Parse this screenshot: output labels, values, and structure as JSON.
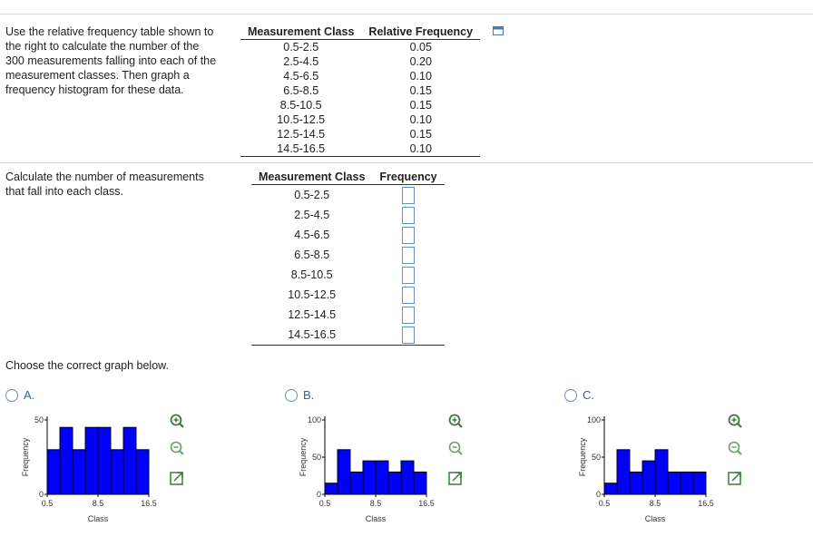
{
  "prompt_text": "Use the relative frequency table shown to the right to calculate the number of the 300 measurements falling into each of the measurement classes. Then graph a frequency histogram for these data.",
  "prompt_lines": [
    "Use the relative frequency table shown to",
    "the right to calculate the number of the",
    "300 measurements falling into each of the",
    "measurement classes. Then graph a",
    "frequency histogram for these data."
  ],
  "rel_table": {
    "headers": [
      "Measurement Class",
      "Relative Frequency"
    ],
    "rows": [
      [
        "0.5-2.5",
        "0.05"
      ],
      [
        "2.5-4.5",
        "0.20"
      ],
      [
        "4.5-6.5",
        "0.10"
      ],
      [
        "6.5-8.5",
        "0.15"
      ],
      [
        "8.5-10.5",
        "0.15"
      ],
      [
        "10.5-12.5",
        "0.10"
      ],
      [
        "12.5-14.5",
        "0.15"
      ],
      [
        "14.5-16.5",
        "0.10"
      ]
    ]
  },
  "calc_prompt_lines": [
    "Calculate the number of measurements",
    "that fall into each class."
  ],
  "freq_table": {
    "headers": [
      "Measurement Class",
      "Frequency"
    ],
    "classes": [
      "0.5-2.5",
      "2.5-4.5",
      "4.5-6.5",
      "6.5-8.5",
      "8.5-10.5",
      "10.5-12.5",
      "12.5-14.5",
      "14.5-16.5"
    ],
    "frequency_values": [
      "",
      "",
      "",
      "",
      "",
      "",
      "",
      ""
    ]
  },
  "choose_text": "Choose the correct graph below.",
  "options": [
    {
      "label": "A.",
      "ylabel": "Frequency",
      "xlabel": "Class",
      "y_ticks": [
        "0",
        "50"
      ]
    },
    {
      "label": "B.",
      "ylabel": "Frequency",
      "xlabel": "Class",
      "y_ticks": [
        "0",
        "50",
        "100"
      ]
    },
    {
      "label": "C.",
      "ylabel": "Frequency",
      "xlabel": "Class",
      "y_ticks": [
        "0",
        "50",
        "100"
      ]
    }
  ],
  "chart_data": [
    {
      "type": "bar",
      "x_ticks": [
        "0.5",
        "8.5",
        "16.5"
      ],
      "xlabel": "Class",
      "ylabel": "Frequency",
      "bin_edges": [
        0.5,
        2.5,
        4.5,
        6.5,
        8.5,
        10.5,
        12.5,
        14.5,
        16.5
      ],
      "values": [
        30,
        45,
        30,
        45,
        45,
        30,
        45,
        30
      ],
      "ylim": [
        0,
        50
      ],
      "y_ticks": [
        0,
        50
      ]
    },
    {
      "type": "bar",
      "x_ticks": [
        "0.5",
        "8.5",
        "16.5"
      ],
      "xlabel": "Class",
      "ylabel": "Frequency",
      "bin_edges": [
        0.5,
        2.5,
        4.5,
        6.5,
        8.5,
        10.5,
        12.5,
        14.5,
        16.5
      ],
      "values": [
        15,
        60,
        30,
        45,
        45,
        30,
        45,
        30
      ],
      "ylim": [
        0,
        100
      ],
      "y_ticks": [
        0,
        50,
        100
      ]
    },
    {
      "type": "bar",
      "x_ticks": [
        "0.5",
        "8.5",
        "16.5"
      ],
      "xlabel": "Class",
      "ylabel": "Frequency",
      "bin_edges": [
        0.5,
        2.5,
        4.5,
        6.5,
        8.5,
        10.5,
        12.5,
        14.5,
        16.5
      ],
      "values": [
        15,
        60,
        30,
        45,
        60,
        30,
        30,
        30
      ],
      "ylim": [
        0,
        100
      ],
      "y_ticks": [
        0,
        50,
        100
      ]
    }
  ],
  "colors": {
    "bar_fill": "#0000ff",
    "bar_stroke": "#000000",
    "link_blue": "#2a62b6",
    "box_border": "#6a8fc0",
    "divider": "#d9d9d9"
  },
  "icons": [
    "copy-icon",
    "zoom-in-icon",
    "zoom-out-icon",
    "expand-icon"
  ]
}
